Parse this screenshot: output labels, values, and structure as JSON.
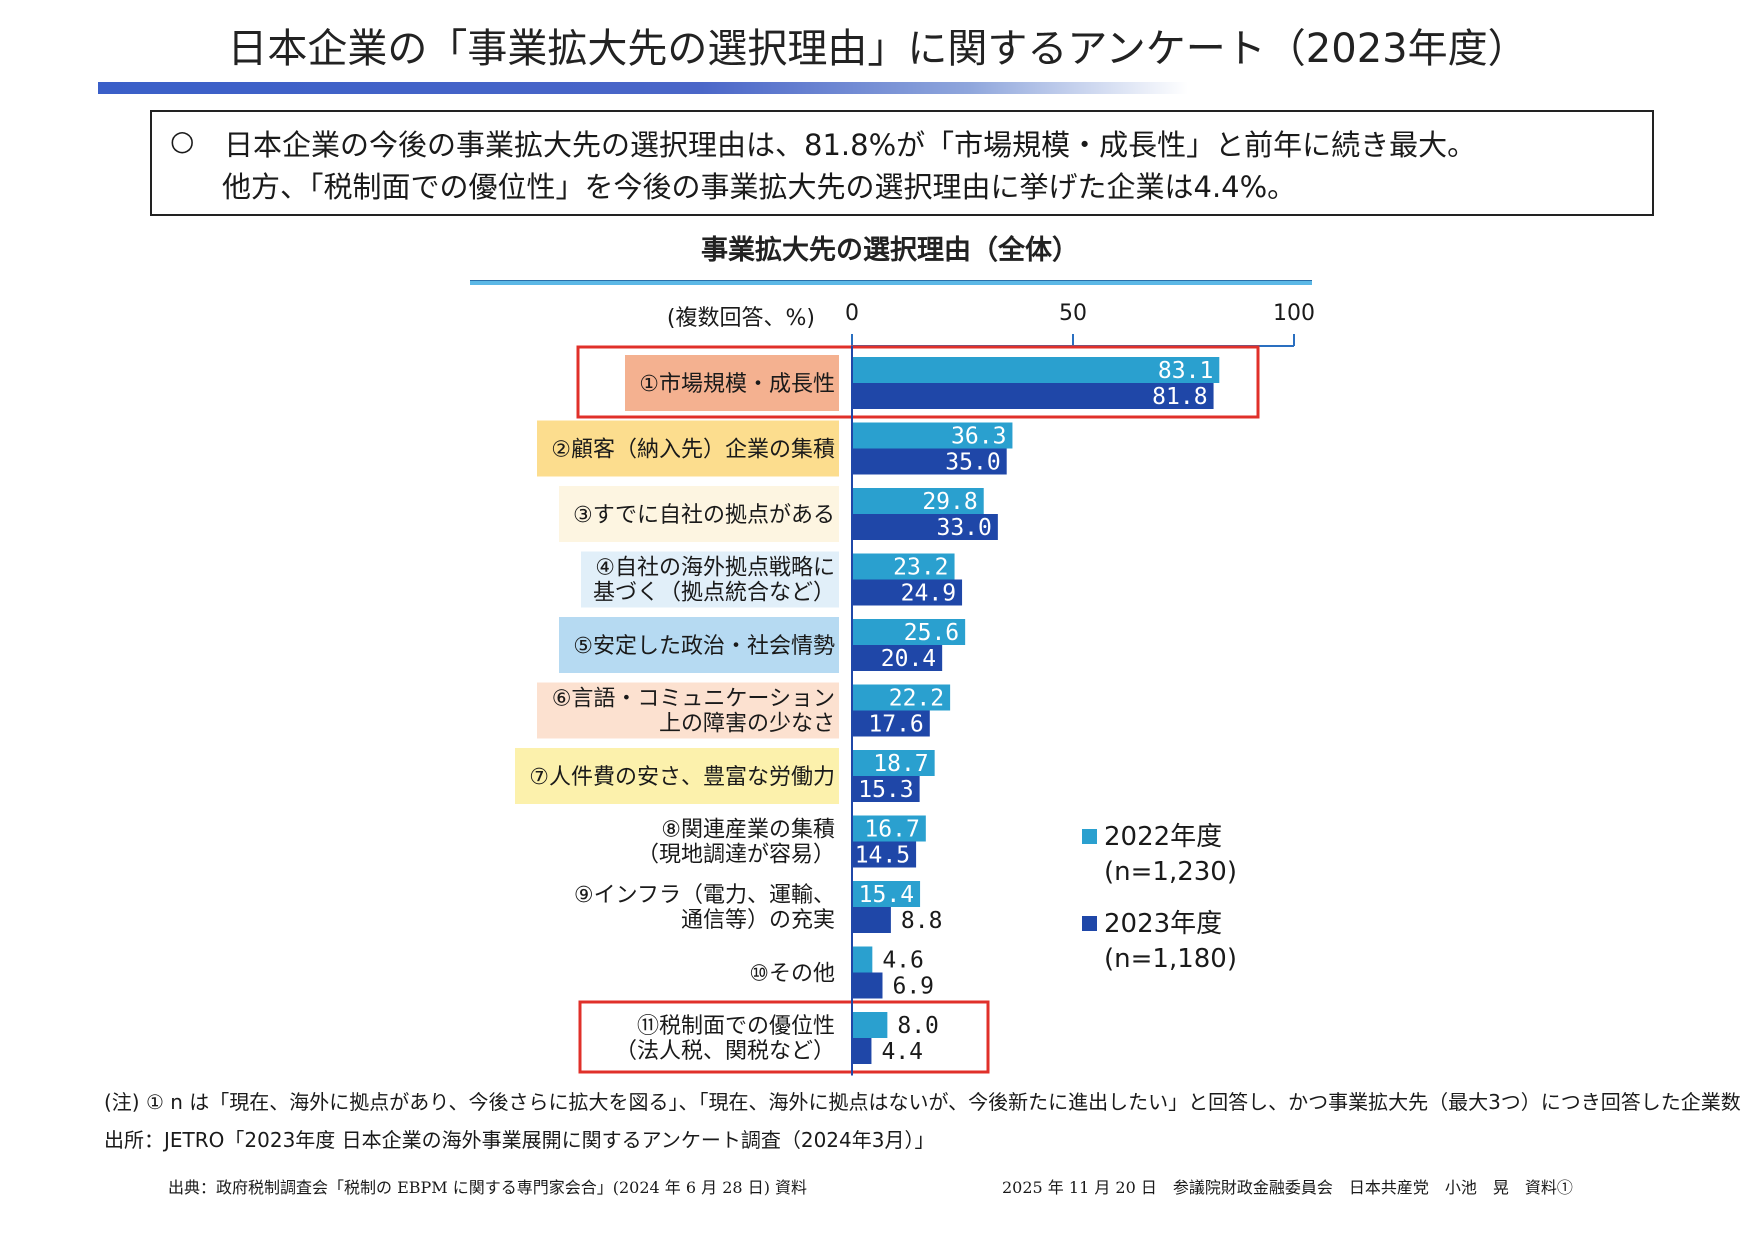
{
  "page": {
    "title": "日本企業の「事業拡大先の選択理由」に関するアンケート（2023年度）",
    "summary": {
      "bullet": "○",
      "line1": "日本企業の今後の事業拡大先の選択理由は、81.8%が「市場規模・成長性」と前年に続き最大。",
      "line2": "他方、「税制面での優位性」を今後の事業拡大先の選択理由に挙げた企業は4.4%。"
    },
    "footer": {
      "note": "(注) ① n は「現在、海外に拠点があり、今後さらに拡大を図る」、「現在、海外に拠点はないが、今後新たに進出したい」と回答し、かつ事業拡大先（最大3つ）につき回答した企業数",
      "source": "出所：JETRO「2023年度 日本企業の海外事業展開に関するアンケート調査（2024年3月）」",
      "citation": "出典：政府税制調査会「税制の EBPM に関する専門家会合」(2024 年 6 月 28 日) 資料",
      "doc_ref": "2025 年 11 月 20 日　参議院財政金融委員会　日本共産党　小池　晃　資料①"
    }
  },
  "chart_data": {
    "type": "bar",
    "orientation": "horizontal",
    "title": "事業拡大先の選択理由（全体）",
    "xlabel": "(複数回答、%)",
    "ylabel": "",
    "xlim": [
      0,
      100
    ],
    "xticks": [
      0,
      50,
      100
    ],
    "grid": false,
    "legend_position": "right",
    "categories": [
      "①市場規模・成長性",
      "②顧客（納入先）企業の集積",
      "③すでに自社の拠点がある",
      "④自社の海外拠点戦略に\n基づく（拠点統合など）",
      "⑤安定した政治・社会情勢",
      "⑥言語・コミュニケーション\n上の障害の少なさ",
      "⑦人件費の安さ、豊富な労働力",
      "⑧関連産業の集積\n（現地調達が容易）",
      "⑨インフラ（電力、運輸、\n通信等）の充実",
      "⑩その他",
      "⑪税制面での優位性\n（法人税、関税など）"
    ],
    "category_highlight_colors": [
      "#f2a37c",
      "#fbd77a",
      "#fdf3dc",
      "#dcecf8",
      "#a9d4f0",
      "#fbdcc8",
      "#fcef9e",
      "",
      "",
      "",
      ""
    ],
    "highlighted_categories": [
      0,
      10
    ],
    "highlight_border_color": "#e0302a",
    "series": [
      {
        "name": "2022年度",
        "sample": "(n=1,230)",
        "color": "#2aa0cf",
        "values": [
          83.1,
          36.3,
          29.8,
          23.2,
          25.6,
          22.2,
          18.7,
          16.7,
          15.4,
          4.6,
          8.0
        ]
      },
      {
        "name": "2023年度",
        "sample": "(n=1,180)",
        "color": "#1f47a8",
        "values": [
          81.8,
          35.0,
          33.0,
          24.9,
          20.4,
          17.6,
          15.3,
          14.5,
          8.8,
          6.9,
          4.4
        ]
      }
    ]
  }
}
